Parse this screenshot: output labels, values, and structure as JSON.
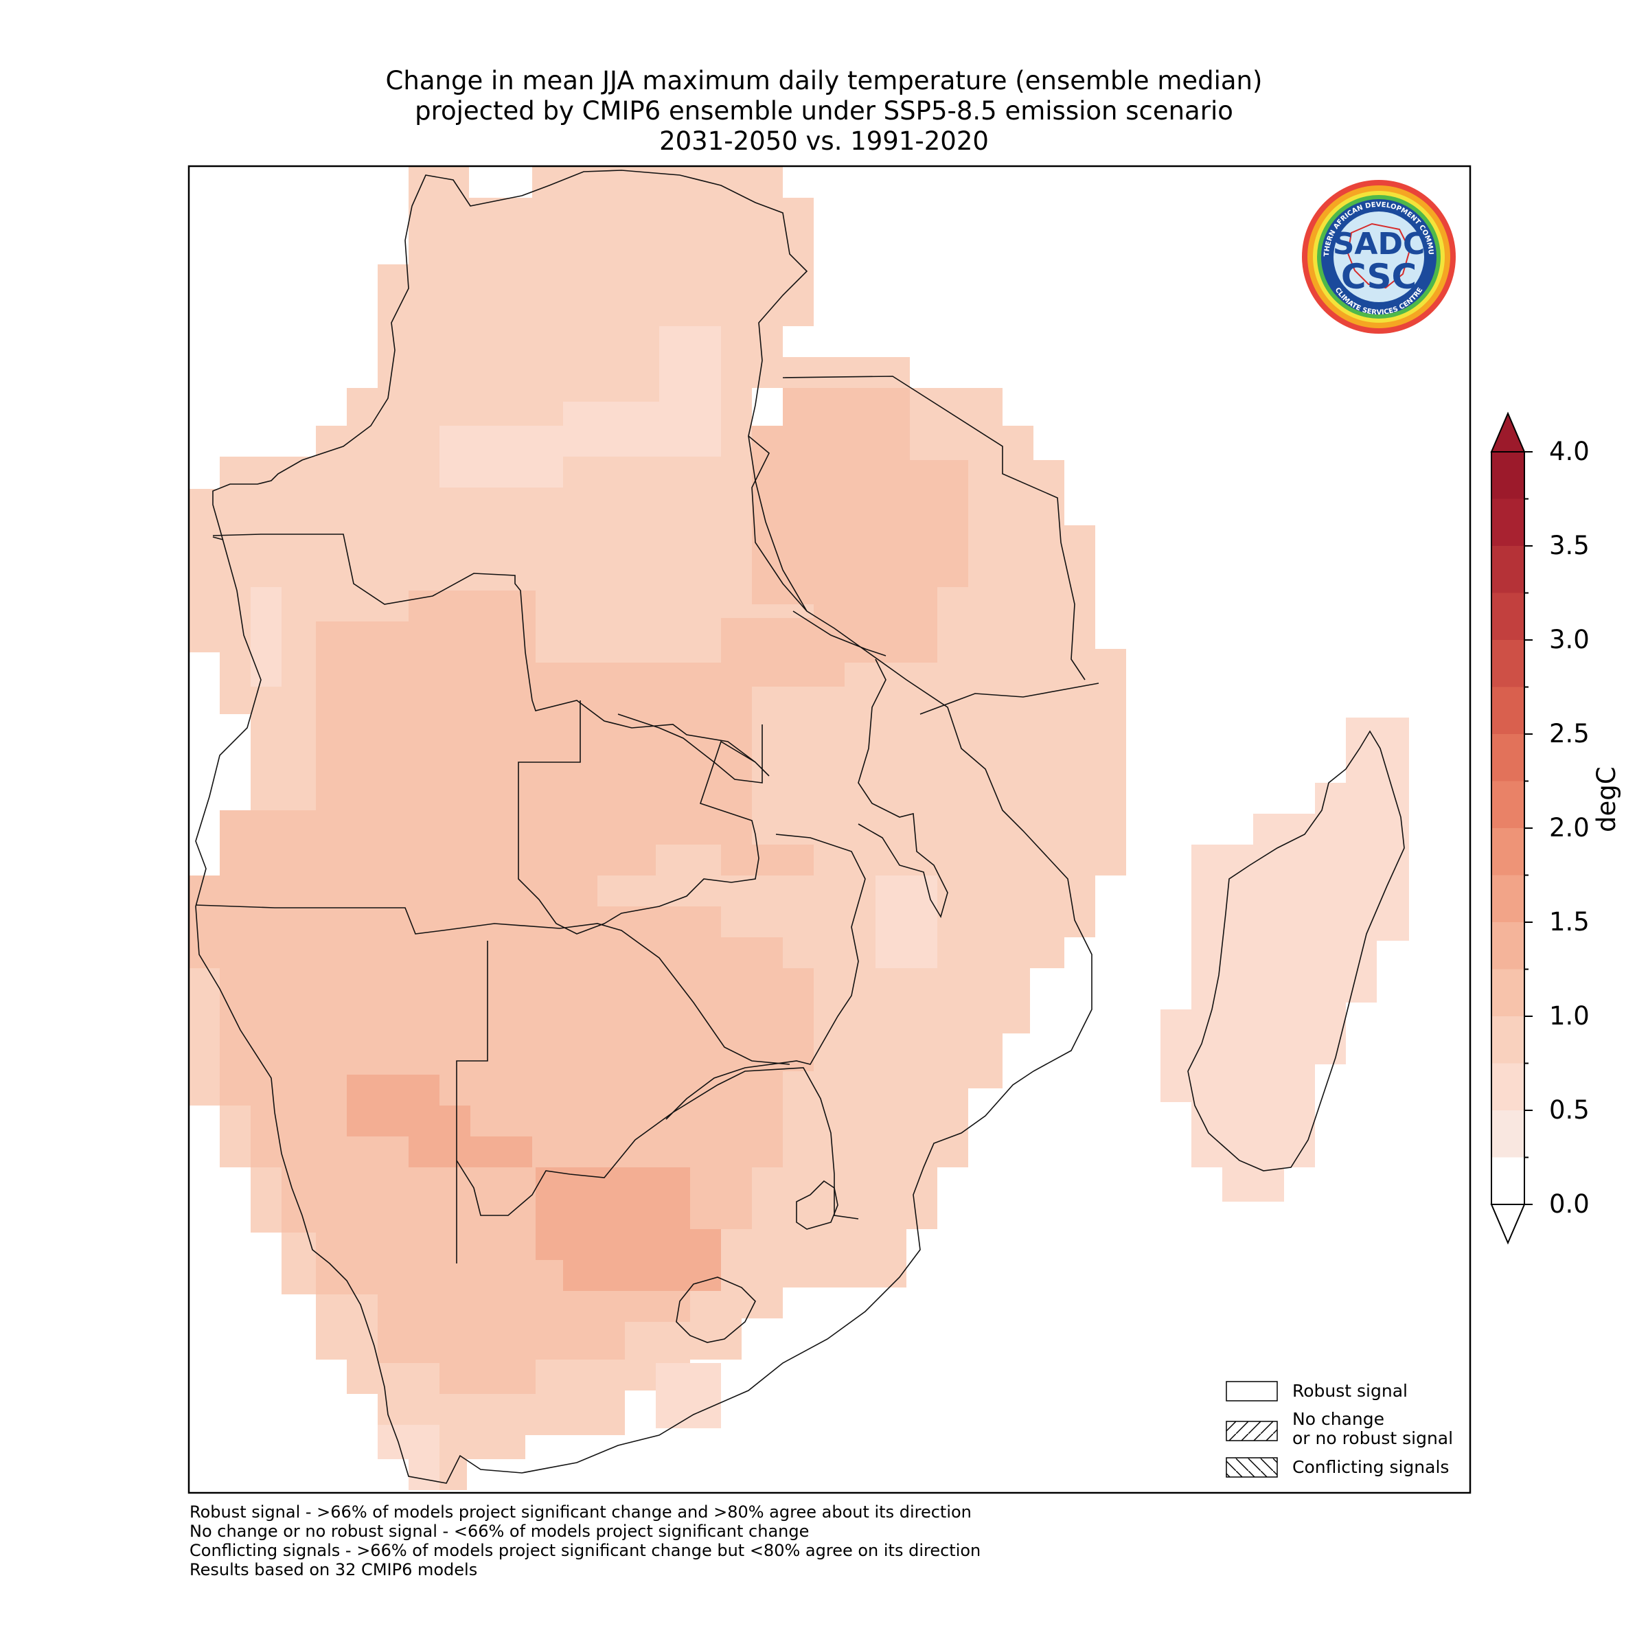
{
  "title": {
    "line1": "Change in mean JJA maximum daily temperature (ensemble median)",
    "line2": "projected by CMIP6 ensemble under SSP5-8.5 emission scenario",
    "line3": "2031-2050 vs. 1991-2020"
  },
  "logo": {
    "ring_text_top": "SOUTHERN AFRICAN DEVELOPMENT COMMUNITY",
    "ring_text_bottom": "CLIMATE SERVICES CENTRE",
    "mark_top": "SADC",
    "mark_bottom": "CSC"
  },
  "colorbar": {
    "label": "degC",
    "ticks": [
      "0.0",
      "0.5",
      "1.0",
      "1.5",
      "2.0",
      "2.5",
      "3.0",
      "3.5",
      "4.0"
    ],
    "tick_values": [
      0.0,
      0.5,
      1.0,
      1.5,
      2.0,
      2.5,
      3.0,
      3.5,
      4.0
    ],
    "step": 0.25,
    "colors": [
      "#ffffff",
      "#f9e7e0",
      "#fbdccf",
      "#f9d1be",
      "#f7c3ab",
      "#f4b49a",
      "#f2a488",
      "#ee9477",
      "#e98267",
      "#e2725a",
      "#d9604e",
      "#ce5046",
      "#c2403e",
      "#b53237",
      "#a82230",
      "#9c1a2b"
    ],
    "extend": "both"
  },
  "legend": {
    "items": [
      {
        "label": "Robust signal",
        "pattern": "none"
      },
      {
        "label": "No change",
        "label2": "or no robust signal",
        "pattern": "forward-hatch"
      },
      {
        "label": "Conflicting signals",
        "pattern": "back-hatch"
      }
    ]
  },
  "footnotes": [
    "Robust signal - >66% of models project significant change and >80% agree about its direction",
    "No change or no robust signal - <66% of models project significant change",
    "Conflicting signals - >66% of models project significant change but <80% agree on its direction",
    "Results based on 32 CMIP6 models"
  ]
}
